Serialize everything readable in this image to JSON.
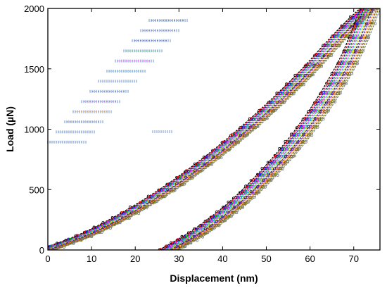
{
  "chart_data": {
    "type": "line",
    "title": "",
    "xlabel": "Displacement (nm)",
    "ylabel": "Load (µN)",
    "xlim": [
      0,
      76
    ],
    "ylim": [
      0,
      2000
    ],
    "x_ticks": [
      "0",
      "10",
      "20",
      "30",
      "40",
      "50",
      "60",
      "70"
    ],
    "y_ticks": [
      "0",
      "500",
      "1000",
      "1500",
      "2000"
    ],
    "grid": false,
    "legend": "upper-left, text illegible",
    "series_colors": [
      "#000000",
      "#ff0000",
      "#0000ff",
      "#00aa00",
      "#ff00ff",
      "#00bcd4",
      "#e6c300",
      "#1a237e",
      "#7b1fa2",
      "#ff8c00",
      "#6d4c41",
      "#808000",
      "#808080"
    ],
    "series": [
      {
        "curve": "loading",
        "x": [
          0,
          10,
          20,
          30,
          40,
          50,
          60,
          65,
          70,
          73.5
        ],
        "y": [
          0,
          140,
          330,
          560,
          830,
          1140,
          1490,
          1690,
          1880,
          2000
        ]
      },
      {
        "curve": "unloading",
        "x": [
          28,
          35,
          40,
          45,
          50,
          55,
          60,
          65,
          70,
          74
        ],
        "y": [
          0,
          150,
          280,
          430,
          610,
          810,
          1040,
          1310,
          1640,
          2000
        ]
      }
    ]
  }
}
